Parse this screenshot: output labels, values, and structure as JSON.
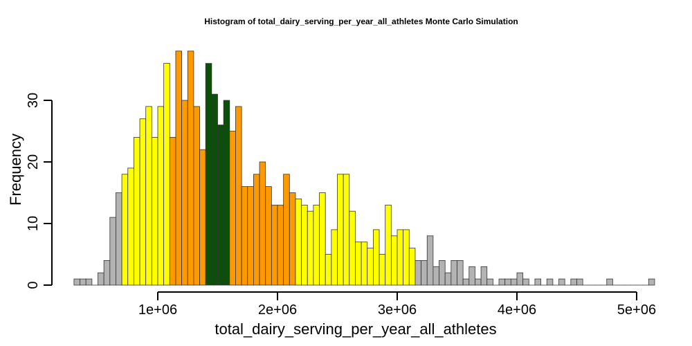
{
  "chart_data": {
    "type": "bar",
    "title": "Histogram of  total_dairy_serving_per_year_all_athletes  Monte Carlo Simulation",
    "xlabel": "total_dairy_serving_per_year_all_athletes",
    "ylabel": "Frequency",
    "bin_start": 300000,
    "bin_width": 50000,
    "xlim": [
      300000,
      5100000
    ],
    "ylim": [
      0,
      38
    ],
    "x_ticks": [
      1000000,
      2000000,
      3000000,
      4000000,
      5000000
    ],
    "x_tick_labels": [
      "1e+06",
      "2e+06",
      "3e+06",
      "4e+06",
      "5e+06"
    ],
    "y_ticks": [
      0,
      10,
      20,
      30
    ],
    "y_tick_labels": [
      "0",
      "10",
      "20",
      "30"
    ],
    "counts": [
      1,
      1,
      1,
      0,
      2,
      4,
      11,
      15,
      18,
      19,
      24,
      27,
      29,
      24,
      29,
      36,
      24,
      38,
      30,
      38,
      29,
      22,
      36,
      31,
      26,
      30,
      25,
      29,
      16,
      16,
      18,
      20,
      16,
      13,
      13,
      18,
      15,
      14,
      13,
      12,
      13,
      15,
      5,
      9,
      18,
      18,
      12,
      7,
      7,
      6,
      9,
      5,
      13,
      8,
      9,
      9,
      6,
      4,
      4,
      8,
      3,
      4,
      2,
      4,
      4,
      1,
      3,
      1,
      3,
      1,
      0,
      1,
      1,
      1,
      2,
      1,
      0,
      1,
      0,
      1,
      0,
      1,
      0,
      1,
      1,
      0,
      0,
      0,
      0,
      1,
      0,
      0,
      0,
      0,
      0,
      0,
      1
    ],
    "colors": {
      "gray": "#b3b3b3",
      "yellow": "#ffff00",
      "orange": "#ff9900",
      "darkgreen": "#0b4f0b"
    },
    "color_bands": [
      {
        "from": 300000,
        "to": 700000,
        "color": "gray"
      },
      {
        "from": 700000,
        "to": 1100000,
        "color": "yellow"
      },
      {
        "from": 1100000,
        "to": 1400000,
        "color": "orange"
      },
      {
        "from": 1400000,
        "to": 1600000,
        "color": "darkgreen"
      },
      {
        "from": 1600000,
        "to": 2150000,
        "color": "orange"
      },
      {
        "from": 2150000,
        "to": 3150000,
        "color": "yellow"
      },
      {
        "from": 3150000,
        "to": 5100000,
        "color": "gray"
      }
    ]
  }
}
